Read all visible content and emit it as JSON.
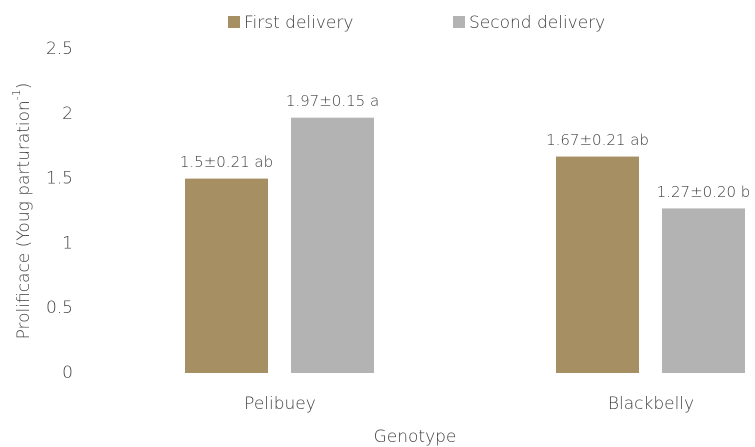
{
  "chart_data": {
    "type": "bar",
    "y_label": {
      "text": "Prolificace (Youg  parturation",
      "superscript": "-1",
      "close": ")"
    },
    "x_label": "Genotype",
    "categories": [
      "Pelibuey",
      "Blackbelly"
    ],
    "series": [
      {
        "name": "First delivery",
        "color": "#a69063",
        "values": [
          1.5,
          1.67
        ],
        "value_labels": [
          "1.5±0.21 ab",
          "1.67±0.21 ab"
        ]
      },
      {
        "name": "Second delivery",
        "color": "#b3b3b3",
        "values": [
          1.97,
          1.27
        ],
        "value_labels": [
          "1.97±0.15 a",
          "1.27±0.20 b"
        ]
      }
    ],
    "ylim": [
      0,
      2.5
    ],
    "yticks": [
      0,
      0.5,
      1,
      1.5,
      2,
      2.5
    ],
    "grid": false,
    "legend": "top"
  }
}
